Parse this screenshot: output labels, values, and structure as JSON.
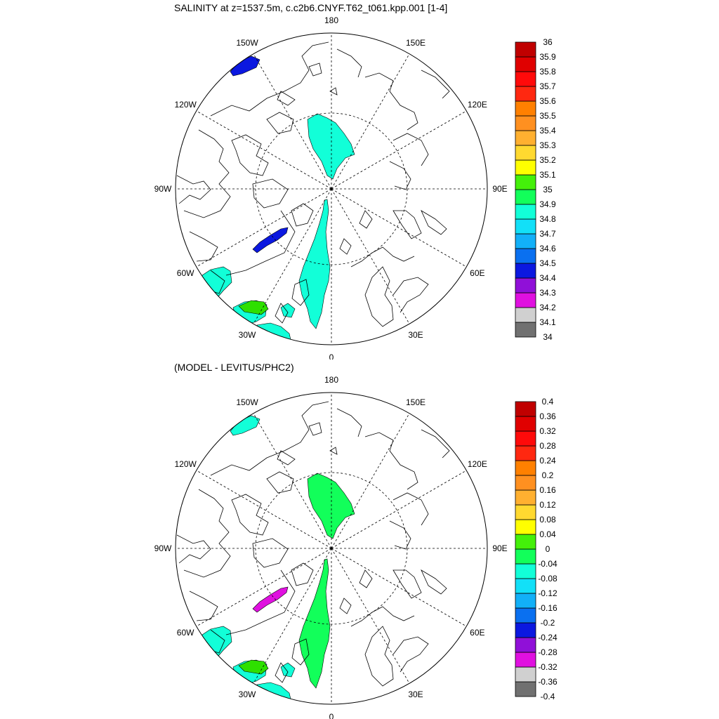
{
  "panels": [
    {
      "title": "SALINITY at z=1537.5m, c.c2b6.CNYF.T62_t061.kpp.001 [1-4]",
      "colorbar": {
        "labels": [
          "34",
          "34.1",
          "34.2",
          "34.3",
          "34.4",
          "34.5",
          "34.6",
          "34.7",
          "34.8",
          "34.9",
          "35",
          "35.1",
          "35.2",
          "35.3",
          "35.4",
          "35.5",
          "35.6",
          "35.7",
          "35.8",
          "35.9",
          "36"
        ]
      },
      "blobs": [
        {
          "color": "#0b18e0"
        },
        {
          "color": "#12ffd8"
        },
        {
          "color": "#12ffd8"
        },
        {
          "color": "#12ffd8"
        },
        {
          "color": "#0b18e0"
        },
        {
          "color": "#12ffd8"
        },
        {
          "color": "#12ffd8"
        },
        {
          "color": "#12ffd8"
        },
        {
          "color": "#2ee000"
        }
      ]
    },
    {
      "title": "(MODEL - LEVITUS/PHC2)",
      "colorbar": {
        "labels": [
          "-0.4",
          "-0.36",
          "-0.32",
          "-0.28",
          "-0.24",
          "-0.2",
          "-0.16",
          "-0.12",
          "-0.08",
          "-0.04",
          "0",
          "0.04",
          "0.08",
          "0.12",
          "0.16",
          "0.2",
          "0.24",
          "0.28",
          "0.32",
          "0.36",
          "0.4"
        ]
      },
      "blobs": [
        {
          "color": "#12ffd8"
        },
        {
          "color": "#12ff5a"
        },
        {
          "color": "#12ff5a"
        },
        {
          "color": "#12ffd8"
        },
        {
          "color": "#e010e0"
        },
        {
          "color": "#12ffd8"
        },
        {
          "color": "#12ffd8"
        },
        {
          "color": "#12ffd8"
        },
        {
          "color": "#2ee000"
        }
      ]
    }
  ],
  "map": {
    "longitude_labels": [
      "180",
      "150E",
      "120E",
      "90E",
      "60E",
      "30E",
      "0",
      "30W",
      "60W",
      "90W",
      "120W",
      "150W"
    ]
  },
  "palette": [
    "#707070",
    "#d0d0d0",
    "#e010e0",
    "#9010d8",
    "#0b18e0",
    "#0a70f0",
    "#12b0f8",
    "#12e0f8",
    "#12ffd8",
    "#12ff5a",
    "#44f00a",
    "#ffff00",
    "#ffd930",
    "#ffb030",
    "#ff9020",
    "#ff8000",
    "#ff2810",
    "#ff0a0a",
    "#e00000",
    "#c00000"
  ]
}
